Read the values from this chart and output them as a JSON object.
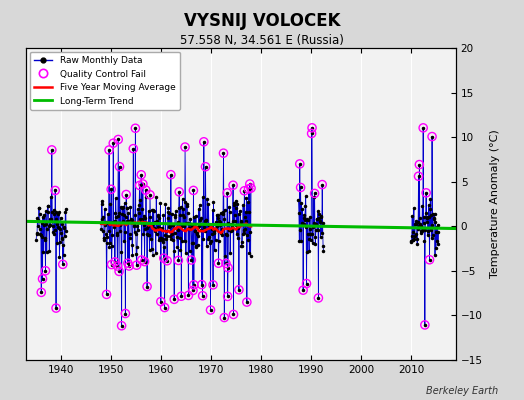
{
  "title": "VYSNIJ VOLOCEK",
  "subtitle": "57.558 N, 34.561 E (Russia)",
  "ylabel": "Temperature Anomaly (°C)",
  "watermark": "Berkeley Earth",
  "xlim": [
    1933,
    2019
  ],
  "ylim": [
    -15,
    20
  ],
  "yticks": [
    -15,
    -10,
    -5,
    0,
    5,
    10,
    15,
    20
  ],
  "xticks": [
    1940,
    1950,
    1960,
    1970,
    1980,
    1990,
    2000,
    2010
  ],
  "bg_color": "#d8d8d8",
  "plot_bg_color": "#f2f2f2",
  "raw_color": "#0000cc",
  "qc_color": "#ff00ff",
  "moving_avg_color": "#ff0000",
  "trend_color": "#00bb00",
  "trend_x": [
    1933,
    2019
  ],
  "trend_y": [
    0.55,
    -0.25
  ],
  "data_segments": [
    {
      "start": 1935.0,
      "end": 1941.0
    },
    {
      "start": 1948.0,
      "end": 1978.0
    },
    {
      "start": 1987.5,
      "end": 1992.5
    },
    {
      "start": 2010.0,
      "end": 2015.5
    }
  ],
  "segment_seeds": [
    10,
    20,
    30,
    40
  ],
  "segment_bases": [
    0.5,
    0.3,
    0.1,
    0.0
  ],
  "segment_stds": [
    1.8,
    1.8,
    1.8,
    1.5
  ],
  "qc_threshold": 3.5,
  "moving_avg_window": 5.0,
  "moving_avg_region": [
    1948,
    1978
  ]
}
